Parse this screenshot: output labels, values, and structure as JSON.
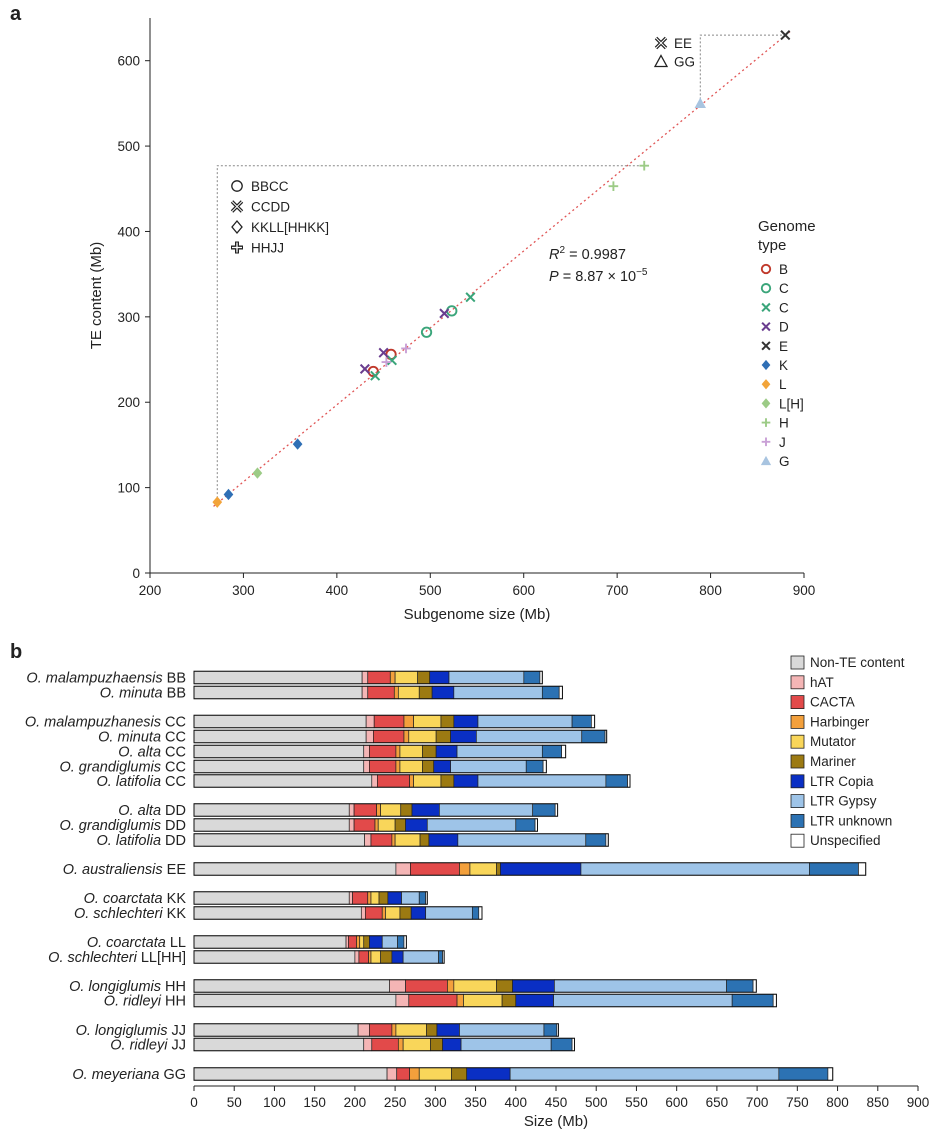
{
  "panel_a": {
    "letter": "a",
    "stats": {
      "r2_sym": "R",
      "r2_exp": "2",
      "r2_val": " = 0.9987",
      "p_sym": "P",
      "p_val": " = 8.87 × 10",
      "p_exp": "−5"
    },
    "inset_legend_left": [
      {
        "symbol": "circle",
        "label": "BBCC"
      },
      {
        "symbol": "xcross",
        "label": "CCDD"
      },
      {
        "symbol": "diamond",
        "label": "KKLL[HHKK]"
      },
      {
        "symbol": "plus",
        "label": "HHJJ"
      }
    ],
    "inset_legend_right": [
      {
        "symbol": "xcross",
        "label": "EE"
      },
      {
        "symbol": "triangle",
        "label": "GG"
      }
    ],
    "genome_legend_title": [
      "Genome",
      "type"
    ],
    "genome_legend": [
      {
        "label": "B",
        "marker": "circle",
        "color": "#c0392b"
      },
      {
        "label": "C",
        "marker": "circle",
        "color": "#3aa57a"
      },
      {
        "label": "C",
        "marker": "x",
        "color": "#3aa57a"
      },
      {
        "label": "D",
        "marker": "x",
        "color": "#6a3d8f"
      },
      {
        "label": "E",
        "marker": "x",
        "color": "#333333"
      },
      {
        "label": "K",
        "marker": "diamond",
        "color": "#2f6fb5"
      },
      {
        "label": "L",
        "marker": "diamond",
        "color": "#f2a43a"
      },
      {
        "label": "L[H]",
        "marker": "diamond",
        "color": "#9ccb86"
      },
      {
        "label": "H",
        "marker": "plus",
        "color": "#9ccb86"
      },
      {
        "label": "J",
        "marker": "plus",
        "color": "#c9a0d6"
      },
      {
        "label": "G",
        "marker": "triangle",
        "color": "#a8c4e0"
      }
    ]
  },
  "panel_b": {
    "letter": "b",
    "legend": [
      {
        "label": "Non-TE content",
        "color": "#d9d9d9"
      },
      {
        "label": "hAT",
        "color": "#f4b5b5"
      },
      {
        "label": "CACTA",
        "color": "#e24a4a"
      },
      {
        "label": "Harbinger",
        "color": "#f3a03c"
      },
      {
        "label": "Mutator",
        "color": "#f9d65a"
      },
      {
        "label": "Mariner",
        "color": "#9c7a12"
      },
      {
        "label": "LTR Copia",
        "color": "#0a2fc4"
      },
      {
        "label": "LTR Gypsy",
        "color": "#9ec4e8"
      },
      {
        "label": "LTR unknown",
        "color": "#2c72b3"
      },
      {
        "label": "Unspecified",
        "color": "#ffffff"
      }
    ]
  },
  "chart_data": [
    {
      "type": "scatter",
      "title": "",
      "xlabel": "Subgenome size (Mb)",
      "ylabel": "TE content (Mb)",
      "xlim": [
        200,
        900
      ],
      "ylim": [
        0,
        650
      ],
      "xticks": [
        200,
        300,
        400,
        500,
        600,
        700,
        800,
        900
      ],
      "yticks": [
        0,
        100,
        200,
        300,
        400,
        500,
        600
      ],
      "regression": {
        "type": "linear",
        "line_style": "dotted",
        "color": "#e05555",
        "r2": 0.9987,
        "p": "8.87 × 10^-5"
      },
      "series": [
        {
          "name": "B",
          "marker": "circle",
          "color": "#c0392b",
          "points": [
            [
              439,
              236
            ],
            [
              458,
              256
            ]
          ]
        },
        {
          "name": "C",
          "marker": "circle",
          "color": "#3aa57a",
          "points": [
            [
              496,
              282
            ],
            [
              523,
              307
            ]
          ]
        },
        {
          "name": "C",
          "marker": "x",
          "color": "#3aa57a",
          "points": [
            [
              441,
              231
            ],
            [
              459,
              249
            ],
            [
              543,
              323
            ]
          ]
        },
        {
          "name": "D",
          "marker": "x",
          "color": "#6a3d8f",
          "points": [
            [
              430,
              239
            ],
            [
              450,
              258
            ],
            [
              515,
              304
            ]
          ]
        },
        {
          "name": "E",
          "marker": "x",
          "color": "#333333",
          "points": [
            [
              880,
              630
            ]
          ]
        },
        {
          "name": "K",
          "marker": "diamond",
          "color": "#2f6fb5",
          "points": [
            [
              284,
              92
            ],
            [
              358,
              151
            ]
          ]
        },
        {
          "name": "L",
          "marker": "diamond",
          "color": "#f2a43a",
          "points": [
            [
              272,
              83
            ]
          ]
        },
        {
          "name": "L[H]",
          "marker": "diamond",
          "color": "#9ccb86",
          "points": [
            [
              315,
              117
            ]
          ]
        },
        {
          "name": "H",
          "marker": "plus",
          "color": "#9ccb86",
          "points": [
            [
              696,
              453
            ],
            [
              729,
              477
            ]
          ]
        },
        {
          "name": "J",
          "marker": "plus",
          "color": "#c9a0d6",
          "points": [
            [
              453,
              247
            ],
            [
              474,
              263
            ]
          ]
        },
        {
          "name": "G",
          "marker": "triangle",
          "color": "#a8c4e0",
          "points": [
            [
              789,
              550
            ]
          ]
        }
      ]
    },
    {
      "type": "bar",
      "orientation": "horizontal",
      "stacked": true,
      "xlabel": "Size (Mb)",
      "ylabel": "",
      "xlim": [
        0,
        900
      ],
      "xticks": [
        0,
        50,
        100,
        150,
        200,
        250,
        300,
        350,
        400,
        450,
        500,
        550,
        600,
        650,
        700,
        750,
        800,
        850,
        900
      ],
      "series_names": [
        "Non-TE content",
        "hAT",
        "CACTA",
        "Harbinger",
        "Mutator",
        "Mariner",
        "LTR Copia",
        "LTR Gypsy",
        "LTR unknown",
        "Unspecified"
      ],
      "groups": [
        {
          "rows": [
            {
              "species": "O. malampuzhaensis",
              "genome": "BB",
              "values": [
                209,
                7,
                28,
                6,
                28,
                15,
                24,
                93,
                20,
                3
              ]
            },
            {
              "species": "O. minuta",
              "genome": "BB",
              "values": [
                209,
                7,
                33,
                5,
                26,
                16,
                27,
                110,
                21,
                4
              ]
            }
          ]
        },
        {
          "rows": [
            {
              "species": "O. malampuzhanesis",
              "genome": "CC",
              "values": [
                214,
                10,
                37,
                12,
                34,
                16,
                30,
                117,
                24,
                4
              ]
            },
            {
              "species": "O. minuta",
              "genome": "CC",
              "values": [
                214,
                9,
                38,
                6,
                34,
                18,
                32,
                131,
                29,
                2
              ]
            },
            {
              "species": "O. alta",
              "genome": "CC",
              "values": [
                211,
                7,
                33,
                5,
                28,
                17,
                26,
                106,
                24,
                5
              ]
            },
            {
              "species": "O. grandiglumis",
              "genome": "CC",
              "values": [
                211,
                7,
                33,
                5,
                28,
                14,
                21,
                94,
                21,
                4
              ]
            },
            {
              "species": "O. latifolia",
              "genome": "CC",
              "values": [
                221,
                7,
                40,
                5,
                34,
                16,
                30,
                159,
                27,
                3
              ]
            }
          ]
        },
        {
          "rows": [
            {
              "species": "O. alta",
              "genome": "DD",
              "values": [
                193,
                6,
                28,
                5,
                25,
                14,
                34,
                116,
                28,
                3
              ]
            },
            {
              "species": "O. grandiglumis",
              "genome": "DD",
              "values": [
                193,
                6,
                26,
                4,
                21,
                13,
                27,
                110,
                24,
                3
              ]
            },
            {
              "species": "O. latifolia",
              "genome": "DD",
              "values": [
                212,
                8,
                26,
                4,
                31,
                11,
                36,
                159,
                25,
                3
              ]
            }
          ]
        },
        {
          "rows": [
            {
              "species": "O. australiensis",
              "genome": "EE",
              "values": [
                251,
                18,
                61,
                13,
                33,
                5,
                100,
                284,
                61,
                9
              ]
            }
          ]
        },
        {
          "rows": [
            {
              "species": "O. coarctata",
              "genome": "KK",
              "values": [
                193,
                4,
                19,
                4,
                10,
                11,
                17,
                22,
                8,
                2
              ]
            },
            {
              "species": "O. schlechteri",
              "genome": "KK",
              "values": [
                208,
                5,
                21,
                4,
                18,
                14,
                18,
                58,
                8,
                4
              ]
            }
          ]
        },
        {
          "rows": [
            {
              "species": "O. coarctata",
              "genome": "LL",
              "values": [
                189,
                3,
                10,
                4,
                5,
                7,
                16,
                19,
                8,
                3
              ]
            },
            {
              "species": "O. schlechteri",
              "genome": "LL[HH]",
              "values": [
                200,
                5,
                12,
                3,
                12,
                14,
                14,
                44,
                5,
                2
              ]
            }
          ]
        },
        {
          "rows": [
            {
              "species": "O. longiglumis",
              "genome": "HH",
              "values": [
                243,
                20,
                52,
                8,
                53,
                20,
                52,
                214,
                33,
                4
              ]
            },
            {
              "species": "O. ridleyi",
              "genome": "HH",
              "values": [
                251,
                16,
                60,
                8,
                48,
                17,
                47,
                222,
                51,
                4
              ]
            }
          ]
        },
        {
          "rows": [
            {
              "species": "O. longiglumis",
              "genome": "JJ",
              "values": [
                204,
                14,
                28,
                5,
                38,
                13,
                28,
                105,
                16,
                2
              ]
            },
            {
              "species": "O. ridleyi",
              "genome": "JJ",
              "values": [
                211,
                10,
                33,
                6,
                34,
                15,
                23,
                112,
                26,
                3
              ]
            }
          ]
        },
        {
          "rows": [
            {
              "species": "O. meyeriana",
              "genome": "GG",
              "values": [
                240,
                12,
                16,
                12,
                40,
                19,
                54,
                334,
                61,
                6
              ]
            }
          ]
        }
      ]
    }
  ]
}
